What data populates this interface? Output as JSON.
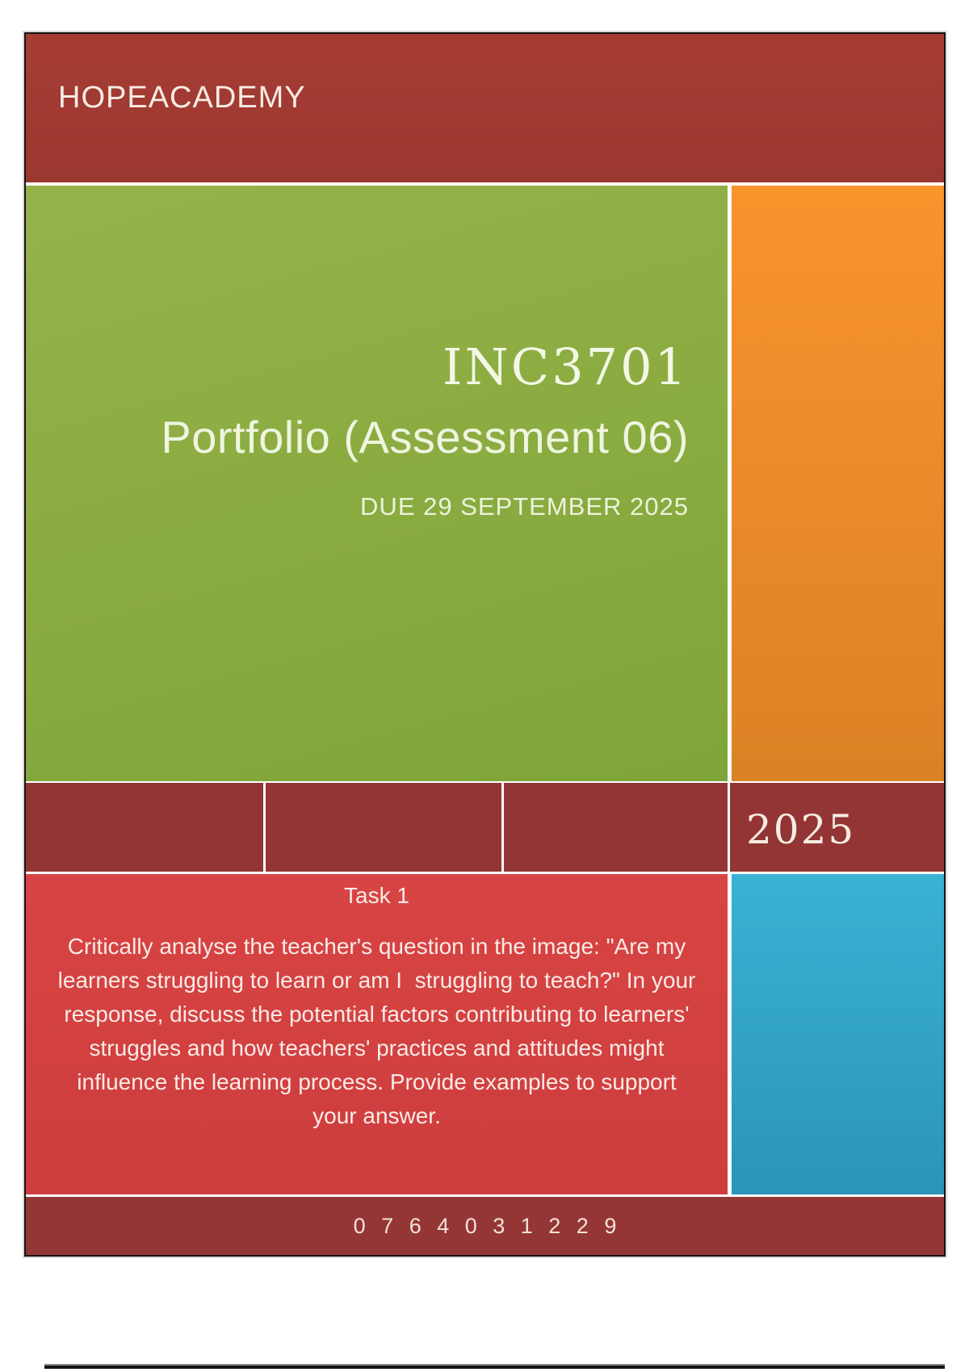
{
  "header": {
    "brand": "HOPEACADEMY"
  },
  "hero": {
    "course_code": "INC3701",
    "title": "Portfolio (Assessment 06)",
    "due": "DUE 29 SEPTEMBER 2025"
  },
  "year_band": {
    "year": "2025"
  },
  "task": {
    "heading": "Task 1",
    "lines": [
      "Critically analyse the teacher's question in the image: \"Are my",
      "learners struggling to learn or am I  struggling to teach?\" In your",
      "response, discuss the potential factors contributing to learners'",
      "struggles and how teachers' practices and attitudes might",
      "influence the learning process. Provide examples to support",
      "your answer."
    ]
  },
  "footer": {
    "phone": "0 7 6 4 0 3 1 2 2 9"
  },
  "colors": {
    "header_maroon": "#9e3931",
    "band_maroon": "#933534",
    "footer_maroon": "#953636",
    "hero_green": "#8aab40",
    "hero_orange": "#ea8a2a",
    "task_red": "#d34040",
    "side_blue": "#34a8cb",
    "text_cream": "#f5ede1"
  }
}
